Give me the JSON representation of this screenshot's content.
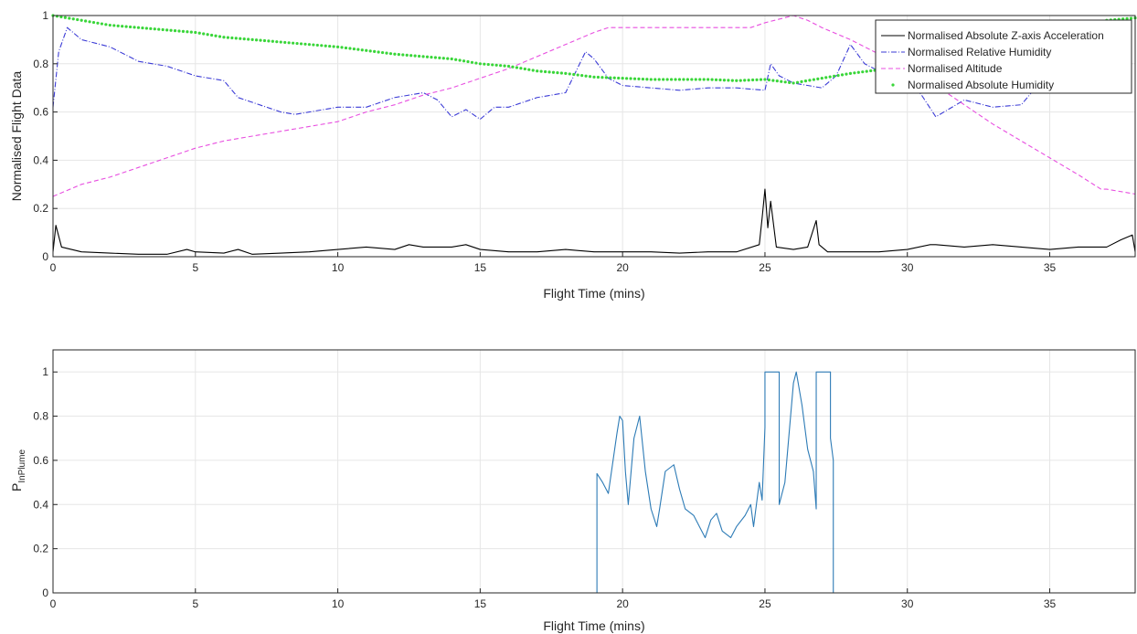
{
  "chart_data": [
    {
      "type": "line",
      "xlabel": "Flight Time (mins)",
      "ylabel": "Normalised Flight Data",
      "xlim": [
        0,
        38
      ],
      "ylim": [
        0,
        1
      ],
      "xticks": [
        0,
        5,
        10,
        15,
        20,
        25,
        30,
        35
      ],
      "yticks": [
        0,
        0.2,
        0.4,
        0.6,
        0.8,
        1
      ],
      "xtick_labels": [
        "0",
        "5",
        "10",
        "15",
        "20",
        "25",
        "30",
        "35"
      ],
      "ytick_labels": [
        "0",
        "0.2",
        "0.4",
        "0.6",
        "0.8",
        "1"
      ],
      "grid": true,
      "legend_position": "top-right",
      "series": [
        {
          "name": "Normalised Absolute Z-axis Acceleration",
          "color": "#000000",
          "style": "solid",
          "x": [
            0,
            0.1,
            0.3,
            1,
            2,
            3,
            4,
            4.7,
            5,
            6,
            6.5,
            7,
            8,
            9,
            10,
            11,
            12,
            12.5,
            13,
            14,
            14.5,
            15,
            16,
            17,
            18,
            19,
            20,
            21,
            22,
            23,
            24,
            24.8,
            24.9,
            25.0,
            25.1,
            25.2,
            25.4,
            26,
            26.5,
            26.8,
            26.9,
            27.2,
            28,
            29,
            30,
            30.8,
            31,
            32,
            33,
            34,
            35,
            36,
            37,
            37.5,
            37.9,
            38
          ],
          "y": [
            0.02,
            0.13,
            0.04,
            0.02,
            0.015,
            0.01,
            0.01,
            0.03,
            0.02,
            0.015,
            0.03,
            0.01,
            0.015,
            0.02,
            0.03,
            0.04,
            0.03,
            0.05,
            0.04,
            0.04,
            0.05,
            0.03,
            0.02,
            0.02,
            0.03,
            0.02,
            0.02,
            0.02,
            0.015,
            0.02,
            0.02,
            0.05,
            0.16,
            0.28,
            0.12,
            0.23,
            0.04,
            0.03,
            0.04,
            0.15,
            0.05,
            0.02,
            0.02,
            0.02,
            0.03,
            0.05,
            0.05,
            0.04,
            0.05,
            0.04,
            0.03,
            0.04,
            0.04,
            0.07,
            0.09,
            0.02
          ]
        },
        {
          "name": "Normalised Relative Humidity",
          "color": "#3b3bd6",
          "style": "dashdot",
          "x": [
            0,
            0.2,
            0.5,
            1,
            2,
            3,
            4,
            5,
            6,
            6.5,
            7,
            8,
            8.5,
            9,
            10,
            11,
            12,
            13,
            13.5,
            14,
            14.5,
            15,
            15.5,
            16,
            17,
            18,
            18.7,
            19,
            19.5,
            20,
            21,
            22,
            23,
            24,
            25,
            25.2,
            25.5,
            26,
            27,
            27.5,
            28,
            28.5,
            29,
            30,
            30.5,
            31,
            32,
            33,
            34,
            34.5
          ],
          "y": [
            0.62,
            0.85,
            0.95,
            0.9,
            0.87,
            0.81,
            0.79,
            0.75,
            0.73,
            0.66,
            0.64,
            0.6,
            0.59,
            0.6,
            0.62,
            0.62,
            0.66,
            0.68,
            0.65,
            0.58,
            0.61,
            0.57,
            0.62,
            0.62,
            0.66,
            0.68,
            0.85,
            0.82,
            0.74,
            0.71,
            0.7,
            0.69,
            0.7,
            0.7,
            0.69,
            0.8,
            0.75,
            0.72,
            0.7,
            0.75,
            0.88,
            0.8,
            0.77,
            0.74,
            0.67,
            0.58,
            0.65,
            0.62,
            0.63,
            0.7
          ]
        },
        {
          "name": "Normalised Altitude",
          "color": "#e84fe0",
          "style": "dashed",
          "x": [
            0,
            1,
            2,
            3,
            4,
            5,
            6,
            7,
            8,
            9,
            10,
            11,
            12,
            13,
            14,
            15,
            16,
            17,
            18,
            19,
            19.5,
            20,
            21,
            22,
            23,
            24,
            24.5,
            25,
            25.5,
            26,
            26.5,
            27,
            28,
            29,
            30,
            31,
            32,
            33,
            34,
            35,
            36,
            36.8,
            37,
            38
          ],
          "y": [
            0.25,
            0.3,
            0.33,
            0.37,
            0.41,
            0.45,
            0.48,
            0.5,
            0.52,
            0.54,
            0.56,
            0.6,
            0.63,
            0.67,
            0.7,
            0.74,
            0.78,
            0.83,
            0.88,
            0.93,
            0.95,
            0.95,
            0.95,
            0.95,
            0.95,
            0.95,
            0.95,
            0.97,
            0.985,
            1.0,
            0.98,
            0.95,
            0.9,
            0.84,
            0.78,
            0.71,
            0.63,
            0.55,
            0.48,
            0.41,
            0.34,
            0.28,
            0.28,
            0.26
          ]
        },
        {
          "name": "Normalised Absolute Humidity",
          "color": "#39d639",
          "style": "dotted",
          "x": [
            0,
            1,
            2,
            3,
            4,
            5,
            6,
            7,
            8,
            9,
            10,
            11,
            12,
            13,
            14,
            15,
            16,
            17,
            18,
            19,
            20,
            21,
            22,
            23,
            24,
            25,
            26,
            27,
            28,
            29,
            30,
            31,
            32,
            33,
            34,
            35,
            36,
            37,
            38
          ],
          "y": [
            1.0,
            0.98,
            0.96,
            0.95,
            0.94,
            0.93,
            0.91,
            0.9,
            0.89,
            0.88,
            0.87,
            0.855,
            0.84,
            0.83,
            0.82,
            0.8,
            0.79,
            0.77,
            0.76,
            0.745,
            0.74,
            0.735,
            0.735,
            0.735,
            0.73,
            0.735,
            0.72,
            0.74,
            0.76,
            0.775,
            0.79,
            0.81,
            0.85,
            0.87,
            0.89,
            0.91,
            0.95,
            0.98,
            0.99
          ]
        }
      ]
    },
    {
      "type": "line",
      "xlabel": "Flight Time (mins)",
      "ylabel_main": "P",
      "ylabel_sub": "InPlume",
      "xlim": [
        0,
        38
      ],
      "ylim": [
        0,
        1.1
      ],
      "xticks": [
        0,
        5,
        10,
        15,
        20,
        25,
        30,
        35
      ],
      "yticks": [
        0,
        0.2,
        0.4,
        0.6,
        0.8,
        1
      ],
      "xtick_labels": [
        "0",
        "5",
        "10",
        "15",
        "20",
        "25",
        "30",
        "35"
      ],
      "ytick_labels": [
        "0",
        "0.2",
        "0.4",
        "0.6",
        "0.8",
        "1"
      ],
      "grid": true,
      "series": [
        {
          "color": "#2d7bb6",
          "style": "solid",
          "x": [
            0,
            19.1,
            19.1,
            19.3,
            19.5,
            19.8,
            19.9,
            20.0,
            20.1,
            20.2,
            20.4,
            20.6,
            20.8,
            21.0,
            21.2,
            21.3,
            21.5,
            21.8,
            22.0,
            22.2,
            22.5,
            22.7,
            22.9,
            23.1,
            23.3,
            23.5,
            23.8,
            24.0,
            24.3,
            24.5,
            24.6,
            24.8,
            24.9,
            25.0,
            25.0,
            25.5,
            25.5,
            25.7,
            25.9,
            26.0,
            26.1,
            26.3,
            26.5,
            26.7,
            26.8,
            26.8,
            27.3,
            27.3,
            27.4,
            27.4,
            38
          ],
          "y": [
            0,
            0,
            0.54,
            0.5,
            0.45,
            0.72,
            0.8,
            0.78,
            0.55,
            0.4,
            0.7,
            0.8,
            0.55,
            0.38,
            0.3,
            0.38,
            0.55,
            0.58,
            0.47,
            0.38,
            0.35,
            0.3,
            0.25,
            0.33,
            0.36,
            0.28,
            0.25,
            0.3,
            0.35,
            0.4,
            0.3,
            0.5,
            0.42,
            0.75,
            1.0,
            1.0,
            0.4,
            0.5,
            0.8,
            0.95,
            1.0,
            0.85,
            0.65,
            0.55,
            0.38,
            1.0,
            1.0,
            0.7,
            0.6,
            0,
            0
          ]
        }
      ]
    }
  ]
}
